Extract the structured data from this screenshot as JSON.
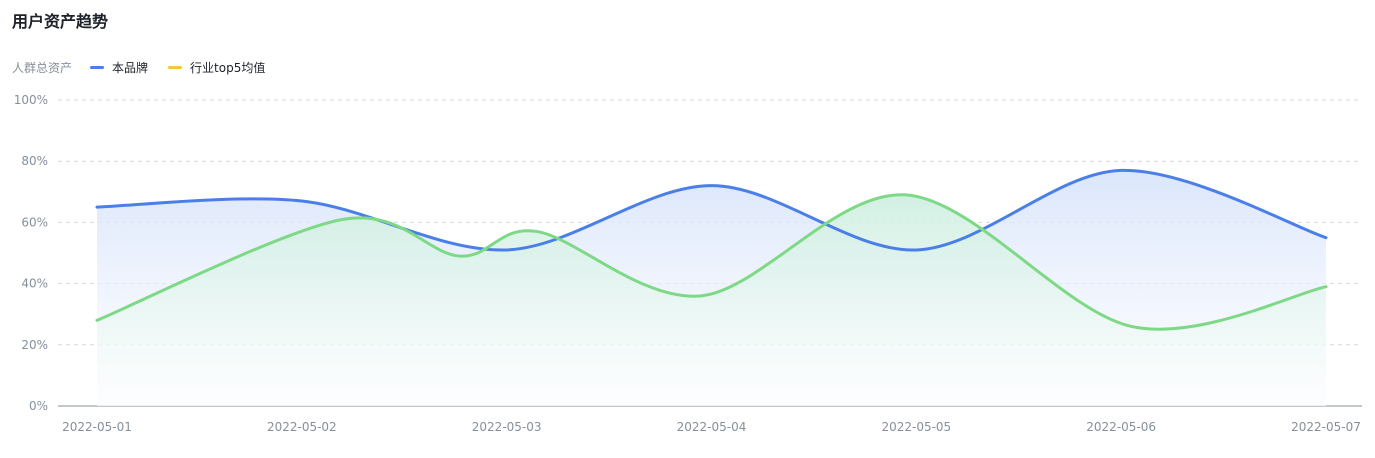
{
  "chart_data": {
    "type": "area",
    "title": "用户资产趋势",
    "legend": {
      "label": "人群总资产",
      "items": [
        {
          "name": "本品牌",
          "color": "#4b7fe8"
        },
        {
          "name": "行业top5均值",
          "color": "#f5c542"
        }
      ],
      "position": "top-left"
    },
    "categories": [
      "2022-05-01",
      "2022-05-02",
      "2022-05-03",
      "2022-05-04",
      "2022-05-05",
      "2022-05-06",
      "2022-05-07"
    ],
    "series": [
      {
        "name": "本品牌",
        "color": "#4b7fe8",
        "values": [
          65,
          67,
          51,
          72,
          51,
          77,
          55
        ]
      },
      {
        "color": "#7ed987",
        "values": [
          28,
          61,
          49,
          57,
          36,
          69,
          26,
          39
        ],
        "x": [
          0,
          1.2,
          1.77,
          2.15,
          2.95,
          3.95,
          5.05,
          6
        ]
      }
    ],
    "yticks": [
      "0%",
      "20%",
      "40%",
      "60%",
      "80%",
      "100%"
    ],
    "ylim": [
      0,
      100
    ],
    "grid": true
  }
}
